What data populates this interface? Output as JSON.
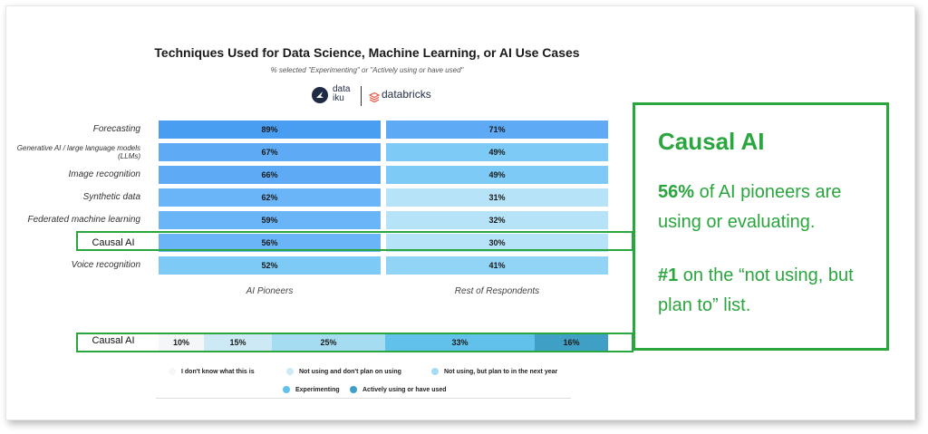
{
  "chart_data": [
    {
      "type": "bar",
      "orientation": "horizontal",
      "title": "Techniques Used for Data Science, Machine Learning, or AI Use Cases",
      "subtitle": "% selected \"Experimenting\" or \"Actively using or have used\"",
      "categories": [
        "Forecasting",
        "Generative AI / large language models (LLMs)",
        "Image recognition",
        "Synthetic data",
        "Federated machine learning",
        "Causal AI",
        "Voice recognition"
      ],
      "series": [
        {
          "name": "AI Pioneers",
          "values": [
            89,
            67,
            66,
            62,
            59,
            56,
            52
          ],
          "labels": [
            "89%",
            "67%",
            "66%",
            "62%",
            "59%",
            "56%",
            "52%"
          ]
        },
        {
          "name": "Rest of Respondents",
          "values": [
            71,
            49,
            49,
            31,
            32,
            30,
            41
          ],
          "labels": [
            "71%",
            "49%",
            "49%",
            "31%",
            "32%",
            "30%",
            "41%"
          ]
        }
      ],
      "unit": "%"
    },
    {
      "type": "bar",
      "orientation": "horizontal",
      "stacked": true,
      "category": "Causal AI",
      "segments": [
        {
          "name": "I don't know what this is",
          "value": 10,
          "label": "10%",
          "color": "#f4f6f8"
        },
        {
          "name": "Not using and don't plan on using",
          "value": 15,
          "label": "15%",
          "color": "#cde9f6"
        },
        {
          "name": "Not using, but plan to in the next year",
          "value": 25,
          "label": "25%",
          "color": "#a6dcf2"
        },
        {
          "name": "Experimenting",
          "value": 33,
          "label": "33%",
          "color": "#62c1ea"
        },
        {
          "name": "Actively using or have used",
          "value": 16,
          "label": "16%",
          "color": "#3f9fc4"
        }
      ]
    }
  ],
  "logos": {
    "dataiku": "data iku",
    "databricks": "databricks"
  },
  "highlight_label": "Causal AI",
  "callout": {
    "title": "Causal AI",
    "p1_bold": "56%",
    "p1_rest": " of AI pioneers are using or evaluating.",
    "p2_bold": "#1",
    "p2_rest": " on the “not using, but plan to” list."
  },
  "colors": {
    "accent_green": "#2aa63e"
  }
}
